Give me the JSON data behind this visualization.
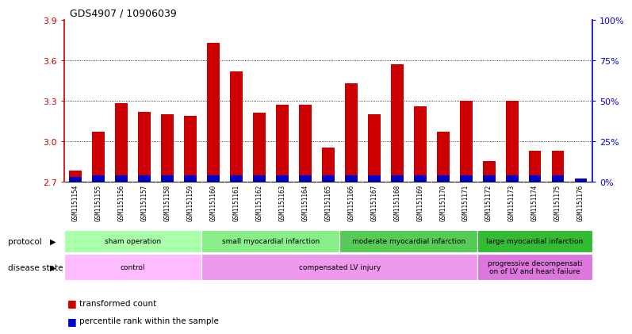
{
  "title": "GDS4907 / 10906039",
  "samples": [
    "GSM1151154",
    "GSM1151155",
    "GSM1151156",
    "GSM1151157",
    "GSM1151158",
    "GSM1151159",
    "GSM1151160",
    "GSM1151161",
    "GSM1151162",
    "GSM1151163",
    "GSM1151164",
    "GSM1151165",
    "GSM1151166",
    "GSM1151167",
    "GSM1151168",
    "GSM1151169",
    "GSM1151170",
    "GSM1151171",
    "GSM1151172",
    "GSM1151173",
    "GSM1151174",
    "GSM1151175",
    "GSM1151176"
  ],
  "bar_values": [
    2.78,
    3.07,
    3.28,
    3.22,
    3.2,
    3.19,
    3.73,
    3.52,
    3.21,
    3.27,
    3.27,
    2.95,
    3.43,
    3.2,
    3.57,
    3.26,
    3.07,
    3.3,
    2.85,
    3.3,
    2.93,
    2.93,
    2.72
  ],
  "blue_pct": [
    3,
    4,
    4,
    4,
    4,
    4,
    4,
    4,
    4,
    4,
    4,
    4,
    4,
    4,
    4,
    4,
    4,
    4,
    4,
    4,
    4,
    4,
    2
  ],
  "bar_color": "#cc0000",
  "percentile_color": "#0000cc",
  "ymin": 2.7,
  "ymax": 3.9,
  "yticks": [
    2.7,
    3.0,
    3.3,
    3.6,
    3.9
  ],
  "right_yticks": [
    0,
    25,
    50,
    75,
    100
  ],
  "protocol_groups": [
    {
      "label": "sham operation",
      "start": 0,
      "end": 5,
      "color": "#aaffaa"
    },
    {
      "label": "small myocardial infarction",
      "start": 6,
      "end": 11,
      "color": "#88ee88"
    },
    {
      "label": "moderate myocardial infarction",
      "start": 12,
      "end": 17,
      "color": "#55cc55"
    },
    {
      "label": "large myocardial infarction",
      "start": 18,
      "end": 22,
      "color": "#33bb33"
    }
  ],
  "disease_groups": [
    {
      "label": "control",
      "start": 0,
      "end": 5,
      "color": "#ffbbff"
    },
    {
      "label": "compensated LV injury",
      "start": 6,
      "end": 17,
      "color": "#ee99ee"
    },
    {
      "label": "progressive decompensati\non of LV and heart failure",
      "start": 18,
      "end": 22,
      "color": "#dd77dd"
    }
  ]
}
